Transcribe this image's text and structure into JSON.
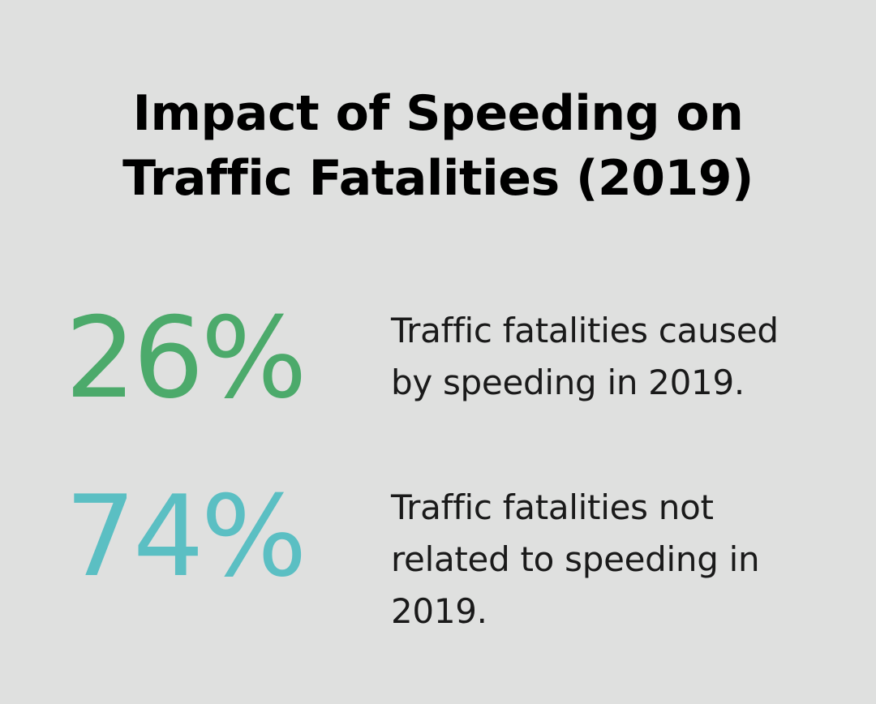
{
  "title": {
    "line1": "Impact of Speeding on",
    "line2": "Traffic Fatalities (2019)"
  },
  "stats": [
    {
      "value": "26%",
      "label": "Traffic fatalities caused by speeding in 2019.",
      "color": "#4caa6b"
    },
    {
      "value": "74%",
      "label": "Traffic fatalities not related to speeding in 2019.",
      "color": "#5bbfc3"
    }
  ],
  "chart_data": {
    "type": "table",
    "title": "Impact of Speeding on Traffic Fatalities (2019)",
    "categories": [
      "Traffic fatalities caused by speeding in 2019.",
      "Traffic fatalities not related to speeding in 2019."
    ],
    "values": [
      26,
      74
    ],
    "unit": "%"
  }
}
